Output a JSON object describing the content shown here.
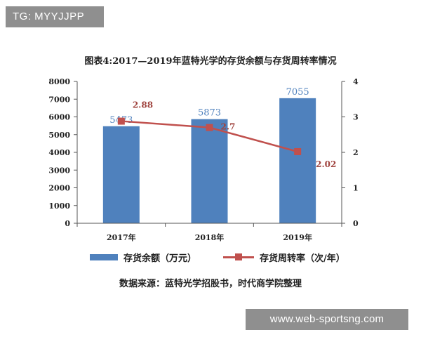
{
  "watermark_top": "TG: MYYJJPP",
  "watermark_bottom": "www.web-sportsng.com",
  "chart_data": {
    "type": "bar",
    "title": "图表4:2017—2019年蓝特光学的存货余额与存货周转率情况",
    "categories": [
      "2017年",
      "2018年",
      "2019年"
    ],
    "series": [
      {
        "name": "存货余额（万元）",
        "type": "bar",
        "axis": "left",
        "color": "#4f81bd",
        "values": [
          5473,
          5873,
          7055
        ],
        "labels": [
          "5473",
          "5873",
          "7055"
        ]
      },
      {
        "name": "存货周转率（次/年）",
        "type": "line",
        "axis": "right",
        "color": "#c0504d",
        "values": [
          2.88,
          2.7,
          2.02
        ],
        "labels": [
          "2.88",
          "2.7",
          "2.02"
        ]
      }
    ],
    "ylim_left": [
      0,
      8000
    ],
    "yticks_left": [
      "0",
      "1000",
      "2000",
      "3000",
      "4000",
      "5000",
      "6000",
      "7000",
      "8000"
    ],
    "ylim_right": [
      0,
      4
    ],
    "yticks_right": [
      "0",
      "1",
      "2",
      "3",
      "4"
    ],
    "grid": false,
    "legend_position": "bottom"
  },
  "source_note": "数据来源：蓝特光学招股书，时代商学院整理"
}
